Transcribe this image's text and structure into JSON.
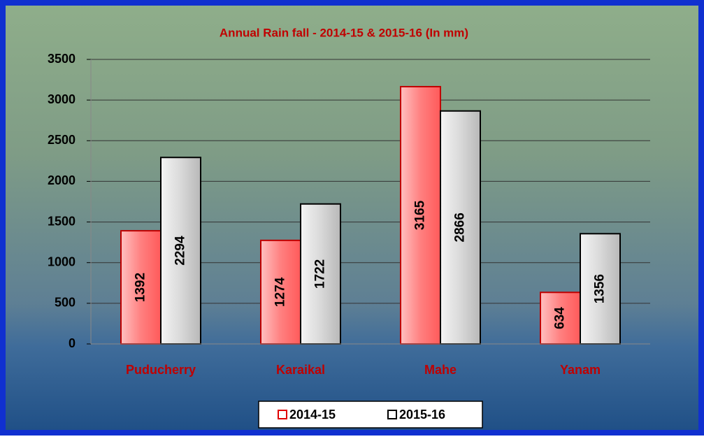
{
  "chart_data": {
    "type": "bar",
    "title": "Annual Rain fall - 2014-15 & 2015-16 (In mm)",
    "categories": [
      "Puducherry",
      "Karaikal",
      "Mahe",
      "Yanam"
    ],
    "series": [
      {
        "name": "2014-15",
        "color": "#ff7b7b",
        "values": [
          1392,
          1274,
          3165,
          634
        ]
      },
      {
        "name": "2015-16",
        "color": "#d9d9d9",
        "values": [
          2294,
          1722,
          2866,
          1356
        ]
      }
    ],
    "ylim": [
      0,
      3500
    ],
    "yticks": [
      0,
      500,
      1000,
      1500,
      2000,
      2500,
      3000,
      3500
    ],
    "grid": true,
    "legend": "bottom"
  }
}
